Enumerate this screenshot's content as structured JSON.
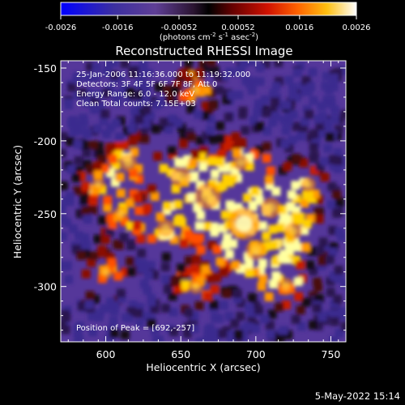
{
  "chart_data": {
    "type": "heatmap",
    "title": "Reconstructed RHESSI Image",
    "xlabel": "Heliocentric X (arcsec)",
    "ylabel": "Heliocentric Y (arcsec)",
    "xlim": [
      570,
      760
    ],
    "ylim": [
      -338,
      -145
    ],
    "xticks": [
      600,
      650,
      700,
      750
    ],
    "yticks": [
      -150,
      -200,
      -250,
      -300
    ],
    "colorbar": {
      "label_text": "(photons cm",
      "label_sup1": "-2",
      "label_mid1": " s",
      "label_sup2": "-1",
      "label_mid2": " asec",
      "label_sup3": "-2",
      "label_end": ")",
      "min": -0.0026,
      "max": 0.0026,
      "tick_values": [
        -0.0026,
        -0.0016,
        -0.00052,
        0.00052,
        0.0016,
        0.0026
      ],
      "tick_labels": [
        "-0.0026",
        "-0.0016",
        "-0.00052",
        "0.00052",
        "0.0016",
        "0.0026"
      ]
    },
    "annotations": [
      "25-Jan-2006 11:16:36.000 to 11:19:32.000",
      "Detectors: 3F 4F 5F 6F 7F 8F, Att 0",
      "Energy Range: 6.0 - 12.0 keV",
      "Clean     Total counts: 7.15E+03"
    ],
    "peak_label": "Position of Peak = [692,-257]",
    "peak": [
      692,
      -257
    ],
    "colors": [
      "#0000ff",
      "#3a2aa8",
      "#5a3a9a",
      "#000000",
      "#6a0000",
      "#cc1100",
      "#ff5500",
      "#ffaa00",
      "#ffff66",
      "#ffffff"
    ]
  },
  "footer": {
    "date": "5-May-2022 15:14"
  }
}
